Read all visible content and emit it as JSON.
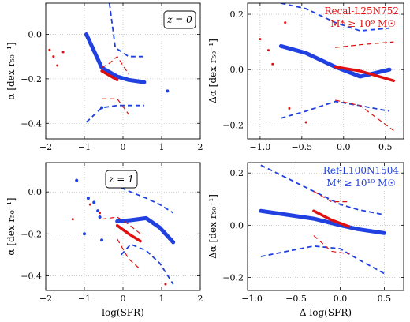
{
  "chart_data": [
    {
      "type": "line",
      "panel": "top-left",
      "xlim": [
        -2,
        2
      ],
      "ylim": [
        -0.47,
        0.14
      ],
      "xticks": [
        -2,
        -1,
        0,
        1,
        2
      ],
      "yticks": [
        0.0,
        -0.2,
        -0.4
      ],
      "xtick_labels": [
        "−2",
        "−1",
        "0",
        "1",
        "2"
      ],
      "ytick_labels": [
        "0.0",
        "−0.2",
        "−0.4"
      ],
      "xlabel": "",
      "ylabel": "α [dex r₅₀⁻¹]",
      "annotation": "z = 0",
      "annotation_position": "top-right",
      "grid": true,
      "series": [
        {
          "color": "#2040e0",
          "style": "thick",
          "x": [
            -0.95,
            -0.55,
            -0.15,
            0.15,
            0.55
          ],
          "y": [
            0.0,
            -0.15,
            -0.19,
            -0.205,
            -0.215
          ]
        },
        {
          "color": "#2040e0",
          "style": "dashed",
          "x": [
            -0.35,
            -0.2,
            0.15,
            0.55
          ],
          "y": [
            0.14,
            -0.06,
            -0.1,
            -0.1
          ]
        },
        {
          "color": "#2040e0",
          "style": "dashed",
          "x": [
            -0.95,
            -0.55,
            -0.15,
            0.15,
            0.55
          ],
          "y": [
            -0.395,
            -0.33,
            -0.32,
            -0.32,
            -0.32
          ]
        },
        {
          "color": "#e01010",
          "style": "thick",
          "x": [
            -0.55,
            -0.15
          ],
          "y": [
            -0.165,
            -0.205
          ]
        },
        {
          "color": "#e01010",
          "style": "dashed",
          "x": [
            -0.55,
            -0.35,
            -0.15,
            0.15
          ],
          "y": [
            -0.15,
            -0.13,
            -0.1,
            -0.18
          ]
        },
        {
          "color": "#e01010",
          "style": "dashed",
          "x": [
            -0.55,
            -0.15,
            0.15
          ],
          "y": [
            -0.29,
            -0.29,
            -0.36
          ]
        }
      ],
      "points": [
        {
          "color": "#e01010",
          "x": -1.9,
          "y": -0.07
        },
        {
          "color": "#e01010",
          "x": -1.8,
          "y": -0.1
        },
        {
          "color": "#e01010",
          "x": -1.7,
          "y": -0.14
        },
        {
          "color": "#e01010",
          "x": -1.55,
          "y": -0.08
        },
        {
          "color": "#2040e0",
          "x": 1.15,
          "y": -0.255
        },
        {
          "color": "#2040e0",
          "x": -0.55,
          "y": -0.33
        }
      ]
    },
    {
      "type": "line",
      "panel": "top-right",
      "xlim": [
        -1.15,
        0.72
      ],
      "ylim": [
        -0.25,
        0.24
      ],
      "xticks": [
        -1.0,
        -0.5,
        0.0,
        0.5
      ],
      "yticks": [
        0.2,
        0.0,
        -0.2
      ],
      "xtick_labels": [
        "−1.0",
        "−0.5",
        "0.0",
        "0.5"
      ],
      "ytick_labels": [
        "0.2",
        "0.0",
        "−0.2"
      ],
      "xlabel": "",
      "ylabel": "Δα [dex r₅₀⁻¹]",
      "annotation": "Recal-L25N752",
      "annotation2": "M* ≥ 10⁹ M☉",
      "annotation_color": "#e01010",
      "annotation_position": "top-right",
      "grid": true,
      "series": [
        {
          "color": "#2040e0",
          "style": "thick",
          "x": [
            -0.75,
            -0.45,
            -0.1,
            0.2,
            0.55
          ],
          "y": [
            0.085,
            0.06,
            0.01,
            -0.025,
            0.0
          ]
        },
        {
          "color": "#2040e0",
          "style": "dashed",
          "x": [
            -0.75,
            -0.45,
            -0.1,
            0.2,
            0.55
          ],
          "y": [
            0.24,
            0.22,
            0.17,
            0.14,
            0.15
          ]
        },
        {
          "color": "#2040e0",
          "style": "dashed",
          "x": [
            -0.75,
            -0.45,
            -0.1,
            0.2,
            0.55
          ],
          "y": [
            -0.175,
            -0.15,
            -0.115,
            -0.13,
            -0.15
          ]
        },
        {
          "color": "#e01010",
          "style": "thick",
          "x": [
            -0.1,
            0.2,
            0.6
          ],
          "y": [
            0.01,
            -0.005,
            -0.04
          ]
        },
        {
          "color": "#e01010",
          "style": "dashed",
          "x": [
            -0.1,
            0.2,
            0.6
          ],
          "y": [
            0.08,
            0.09,
            0.1
          ]
        },
        {
          "color": "#e01010",
          "style": "dashed",
          "x": [
            -0.1,
            0.2,
            0.6
          ],
          "y": [
            -0.11,
            -0.13,
            -0.22
          ]
        }
      ],
      "points": [
        {
          "color": "#e01010",
          "x": -1.0,
          "y": 0.11
        },
        {
          "color": "#e01010",
          "x": -0.9,
          "y": 0.07
        },
        {
          "color": "#e01010",
          "x": -0.85,
          "y": 0.02
        },
        {
          "color": "#e01010",
          "x": -0.7,
          "y": 0.17
        },
        {
          "color": "#e01010",
          "x": -0.65,
          "y": -0.14
        },
        {
          "color": "#e01010",
          "x": -0.45,
          "y": -0.19
        }
      ]
    },
    {
      "type": "line",
      "panel": "bottom-left",
      "xlim": [
        -2,
        2
      ],
      "ylim": [
        -0.47,
        0.14
      ],
      "xticks": [
        -2,
        -1,
        0,
        1,
        2
      ],
      "yticks": [
        0.0,
        -0.2,
        -0.4
      ],
      "xtick_labels": [
        "−2",
        "−1",
        "0",
        "1",
        "2"
      ],
      "ytick_labels": [
        "0.0",
        "−0.2",
        "−0.4"
      ],
      "xlabel": "log(SFR)",
      "ylabel": "α [dex r₅₀⁻¹]",
      "annotation": "z = 1",
      "annotation_position": "top-left",
      "grid": true,
      "series": [
        {
          "color": "#2040e0",
          "style": "thick",
          "x": [
            -0.15,
            0.2,
            0.6,
            0.95,
            1.3
          ],
          "y": [
            -0.14,
            -0.135,
            -0.125,
            -0.17,
            -0.24
          ]
        },
        {
          "color": "#2040e0",
          "style": "dashed",
          "x": [
            -0.05,
            0.2,
            0.6,
            0.95,
            1.3
          ],
          "y": [
            0.02,
            -0.0,
            -0.03,
            -0.06,
            -0.1
          ]
        },
        {
          "color": "#2040e0",
          "style": "dashed",
          "x": [
            -0.05,
            0.2,
            0.6,
            0.95,
            1.3
          ],
          "y": [
            -0.3,
            -0.25,
            -0.28,
            -0.34,
            -0.44
          ]
        },
        {
          "color": "#e01010",
          "style": "thick",
          "x": [
            -0.15,
            0.15,
            0.45
          ],
          "y": [
            -0.16,
            -0.2,
            -0.235
          ]
        },
        {
          "color": "#e01010",
          "style": "dashed",
          "x": [
            -0.55,
            -0.15,
            0.15,
            0.45
          ],
          "y": [
            -0.13,
            -0.12,
            -0.155,
            -0.2
          ]
        },
        {
          "color": "#e01010",
          "style": "dashed",
          "x": [
            -0.15,
            0.15,
            0.45
          ],
          "y": [
            -0.225,
            -0.32,
            -0.37
          ]
        }
      ],
      "points": [
        {
          "color": "#2040e0",
          "x": -1.2,
          "y": 0.055
        },
        {
          "color": "#2040e0",
          "x": -0.9,
          "y": -0.03
        },
        {
          "color": "#2040e0",
          "x": -0.75,
          "y": -0.05
        },
        {
          "color": "#2040e0",
          "x": -0.65,
          "y": -0.09
        },
        {
          "color": "#2040e0",
          "x": -0.6,
          "y": -0.12
        },
        {
          "color": "#2040e0",
          "x": -0.55,
          "y": -0.23
        },
        {
          "color": "#2040e0",
          "x": -1.0,
          "y": -0.2
        },
        {
          "color": "#e01010",
          "x": -0.85,
          "y": -0.06
        },
        {
          "color": "#e01010",
          "x": -0.6,
          "y": -0.1
        },
        {
          "color": "#e01010",
          "x": -1.3,
          "y": -0.13
        },
        {
          "color": "#e01010",
          "x": 1.1,
          "y": -0.44
        }
      ]
    },
    {
      "type": "line",
      "panel": "bottom-right",
      "xlim": [
        -1.05,
        0.72
      ],
      "ylim": [
        -0.25,
        0.24
      ],
      "xticks": [
        -1.0,
        -0.5,
        0.0,
        0.5
      ],
      "yticks": [
        0.2,
        0.0,
        -0.2
      ],
      "xtick_labels": [
        "−1.0",
        "−0.5",
        "0.0",
        "0.5"
      ],
      "ytick_labels": [
        "0.2",
        "0.0",
        "−0.2"
      ],
      "xlabel": "Δ log(SFR)",
      "ylabel": "Δα [dex r₅₀⁻¹]",
      "annotation": "Ref-L100N1504",
      "annotation2": "M* ≥ 10¹⁰ M☉",
      "annotation_color": "#2040e0",
      "annotation_position": "top-right",
      "grid": true,
      "series": [
        {
          "color": "#2040e0",
          "style": "thick",
          "x": [
            -0.9,
            -0.6,
            -0.3,
            0.0,
            0.2,
            0.5
          ],
          "y": [
            0.055,
            0.04,
            0.025,
            0.0,
            -0.015,
            -0.03
          ]
        },
        {
          "color": "#2040e0",
          "style": "dashed",
          "x": [
            -0.9,
            -0.6,
            -0.3,
            0.0,
            0.2,
            0.5
          ],
          "y": [
            0.23,
            0.18,
            0.13,
            0.08,
            0.06,
            0.04
          ]
        },
        {
          "color": "#2040e0",
          "style": "dashed",
          "x": [
            -0.9,
            -0.6,
            -0.3,
            0.0,
            0.2,
            0.5
          ],
          "y": [
            -0.12,
            -0.1,
            -0.08,
            -0.09,
            -0.13,
            -0.185
          ]
        },
        {
          "color": "#e01010",
          "style": "thick",
          "x": [
            -0.3,
            -0.1,
            0.1
          ],
          "y": [
            0.055,
            0.02,
            -0.005
          ]
        },
        {
          "color": "#e01010",
          "style": "dashed",
          "x": [
            -0.3,
            -0.1,
            0.1
          ],
          "y": [
            0.13,
            0.09,
            0.09
          ]
        },
        {
          "color": "#e01010",
          "style": "dashed",
          "x": [
            -0.3,
            -0.1,
            0.1
          ],
          "y": [
            -0.04,
            -0.1,
            -0.11
          ]
        }
      ],
      "points": []
    }
  ]
}
